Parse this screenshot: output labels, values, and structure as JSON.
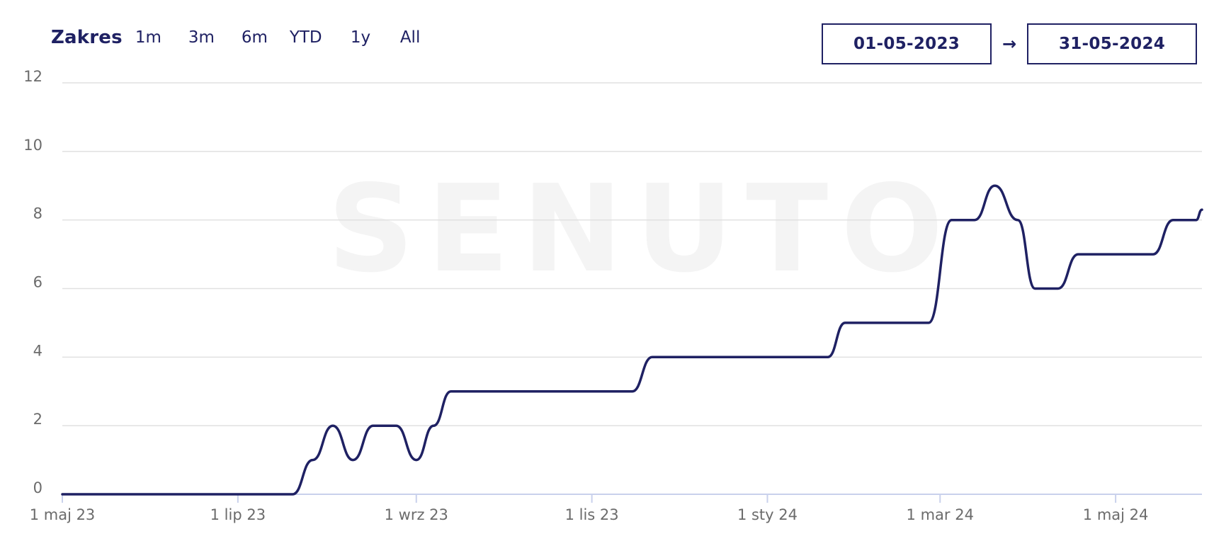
{
  "range_selector": {
    "title": "Zakres",
    "options": [
      "1m",
      "3m",
      "6m",
      "YTD",
      "1y",
      "All"
    ]
  },
  "date_range": {
    "from": "01-05-2023",
    "arrow": "→",
    "to": "31-05-2024"
  },
  "watermark": "SENUTO",
  "colors": {
    "line": "#1f2163",
    "grid": "#e1e1e1",
    "axis": "#c9d1ec",
    "tick_text": "#6b6b6b"
  },
  "chart_data": {
    "type": "line",
    "title": "",
    "xlabel": "",
    "ylabel": "",
    "ylim": [
      0,
      12
    ],
    "yticks": [
      0,
      2,
      4,
      6,
      8,
      10,
      12
    ],
    "xlim": [
      "2023-05-01",
      "2024-05-31"
    ],
    "xticks": [
      {
        "date": "2023-05-01",
        "label": "1 maj 23"
      },
      {
        "date": "2023-07-01",
        "label": "1 lip 23"
      },
      {
        "date": "2023-09-01",
        "label": "1 wrz 23"
      },
      {
        "date": "2023-11-01",
        "label": "1 lis 23"
      },
      {
        "date": "2024-01-01",
        "label": "1 sty 24"
      },
      {
        "date": "2024-03-01",
        "label": "1 mar 24"
      },
      {
        "date": "2024-05-01",
        "label": "1 maj 24"
      }
    ],
    "grid": true,
    "legend": "none",
    "series": [
      {
        "points": [
          [
            "2023-05-01",
            0
          ],
          [
            "2023-07-20",
            0
          ],
          [
            "2023-07-27",
            1
          ],
          [
            "2023-08-03",
            2
          ],
          [
            "2023-08-10",
            1
          ],
          [
            "2023-08-17",
            2
          ],
          [
            "2023-08-25",
            2
          ],
          [
            "2023-09-01",
            1
          ],
          [
            "2023-09-07",
            2
          ],
          [
            "2023-09-13",
            3
          ],
          [
            "2023-10-31",
            3
          ],
          [
            "2023-11-15",
            3
          ],
          [
            "2023-11-22",
            4
          ],
          [
            "2024-01-15",
            4
          ],
          [
            "2024-01-22",
            4
          ],
          [
            "2024-01-28",
            5
          ],
          [
            "2024-02-26",
            5
          ],
          [
            "2024-03-05",
            8
          ],
          [
            "2024-03-13",
            8
          ],
          [
            "2024-03-20",
            9
          ],
          [
            "2024-03-28",
            8
          ],
          [
            "2024-04-03",
            6
          ],
          [
            "2024-04-11",
            6
          ],
          [
            "2024-04-18",
            7
          ],
          [
            "2024-05-14",
            7
          ],
          [
            "2024-05-21",
            8
          ],
          [
            "2024-05-29",
            8
          ],
          [
            "2024-05-31",
            8.3
          ]
        ]
      }
    ]
  }
}
